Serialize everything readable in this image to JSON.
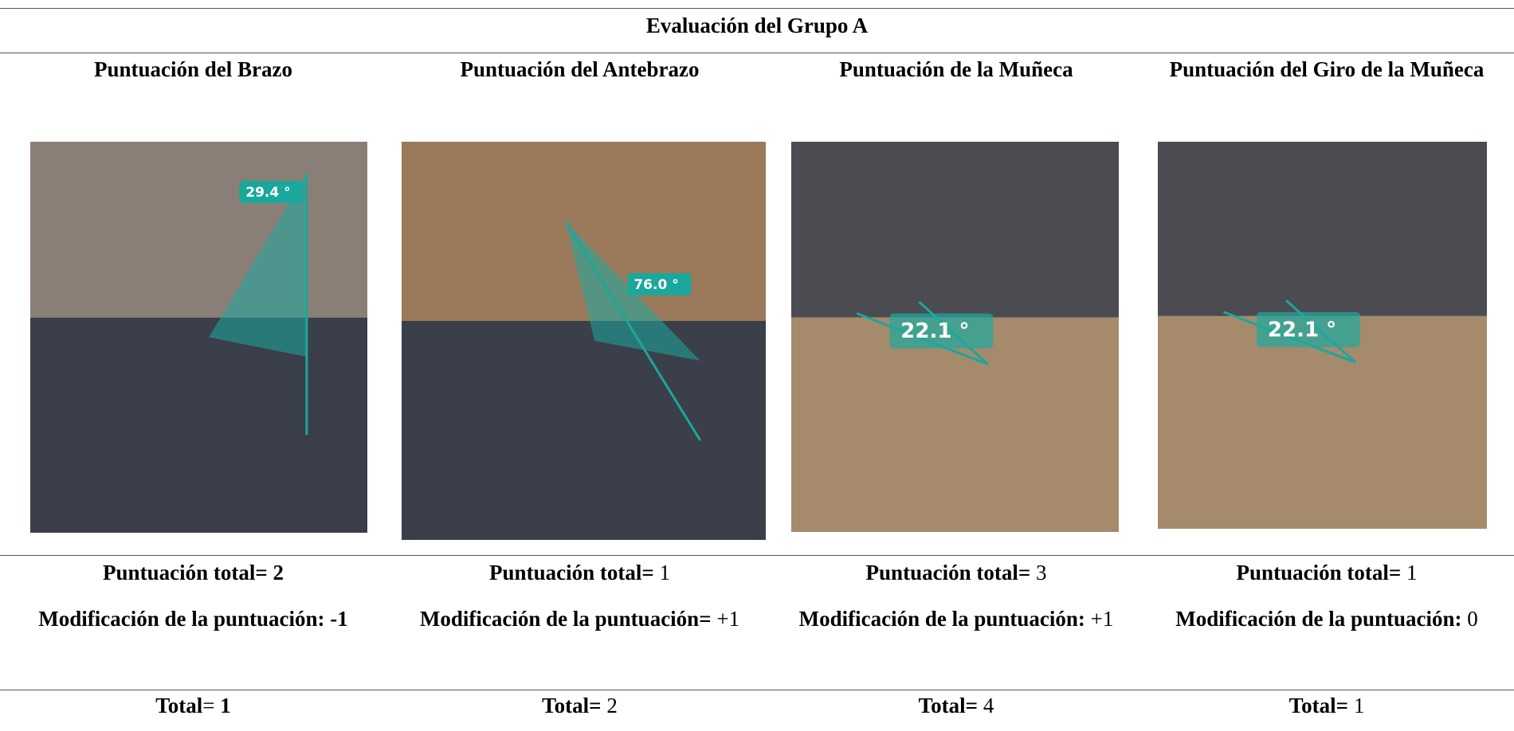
{
  "table": {
    "title": "Evaluación del Grupo A",
    "headers": [
      "Puntuación del Brazo",
      "Puntuación del Antebrazo",
      "Puntuación de la Muñeca",
      "Puntuación del Giro de la Muñeca"
    ],
    "images": [
      {
        "angle_label": "29.4 °"
      },
      {
        "angle_label": "76.0 °"
      },
      {
        "angle_label": "22.1 °"
      },
      {
        "angle_label": "22.1 °"
      }
    ],
    "rows": [
      [
        [
          {
            "text": "Puntuación total= 2",
            "bold": true
          }
        ],
        [
          {
            "text": "Puntuación total= ",
            "bold": true
          },
          {
            "text": "1",
            "bold": false
          }
        ],
        [
          {
            "text": "Puntuación total= ",
            "bold": true
          },
          {
            "text": "3",
            "bold": false
          }
        ],
        [
          {
            "text": "Puntuación total= ",
            "bold": true
          },
          {
            "text": "1",
            "bold": false
          }
        ]
      ],
      [
        [
          {
            "text": "Modificación de la puntuación: -1",
            "bold": true
          }
        ],
        [
          {
            "text": "Modificación de la puntuación= ",
            "bold": true
          },
          {
            "text": "+1",
            "bold": false
          }
        ],
        [
          {
            "text": "Modificación de la puntuación: ",
            "bold": true
          },
          {
            "text": "+1",
            "bold": false
          }
        ],
        [
          {
            "text": "Modificación de la puntuación: ",
            "bold": true
          },
          {
            "text": "0",
            "bold": false
          }
        ]
      ],
      [
        [
          {
            "text": "Total",
            "bold": true
          },
          {
            "text": "= ",
            "bold": false
          },
          {
            "text": "1",
            "bold": true
          }
        ],
        [
          {
            "text": "Total= ",
            "bold": true
          },
          {
            "text": "2",
            "bold": false
          }
        ],
        [
          {
            "text": "Total= ",
            "bold": true
          },
          {
            "text": "4",
            "bold": false
          }
        ],
        [
          {
            "text": "Total= ",
            "bold": true
          },
          {
            "text": "1",
            "bold": false
          }
        ]
      ]
    ]
  }
}
